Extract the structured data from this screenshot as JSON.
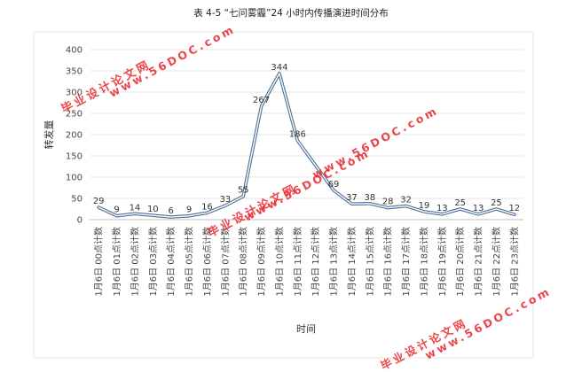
{
  "chart_data": {
    "type": "line",
    "title": "表 4-5 “七问雾霾”24 小时内传播演进时间分布",
    "xlabel": "时间",
    "ylabel": "转发量",
    "ylim": [
      0,
      400
    ],
    "yticks": [
      0,
      50,
      100,
      150,
      200,
      250,
      300,
      350,
      400
    ],
    "grid": true,
    "categories": [
      "1月6日 00点计数",
      "1月6日 01点计数",
      "1月6日 02点计数",
      "1月6日 03点计数",
      "1月6日 04点计数",
      "1月6日 05点计数",
      "1月6日 06点计数",
      "1月6日 07点计数",
      "1月6日 08点计数",
      "1月6日 09点计数",
      "1月6日 10点计数",
      "1月6日 11点计数",
      "1月6日 12点计数",
      "1月6日 13点计数",
      "1月6日 14点计数",
      "1月6日 15点计数",
      "1月6日 16点计数",
      "1月6日 17点计数",
      "1月6日 18点计数",
      "1月6日 19点计数",
      "1月6日 20点计数",
      "1月6日 21点计数",
      "1月6日 22点计数",
      "1月6日 23点计数"
    ],
    "values": [
      29,
      9,
      14,
      10,
      6,
      9,
      16,
      33,
      55,
      267,
      344,
      186,
      null,
      69,
      37,
      38,
      28,
      32,
      19,
      13,
      25,
      13,
      25,
      12
    ],
    "data_labels": [
      "29",
      "9",
      "14",
      "10",
      "6",
      "9",
      "16",
      "33",
      "55",
      "267",
      "344",
      "186",
      "",
      "69",
      "37",
      "38",
      "28",
      "32",
      "19",
      "13",
      "25",
      "13",
      "25",
      "12"
    ],
    "line_color": "#4e7ca8"
  },
  "watermarks": [
    "毕业设计论文网",
    "www.56DOC.com"
  ],
  "watermark_color": "#e8262c"
}
